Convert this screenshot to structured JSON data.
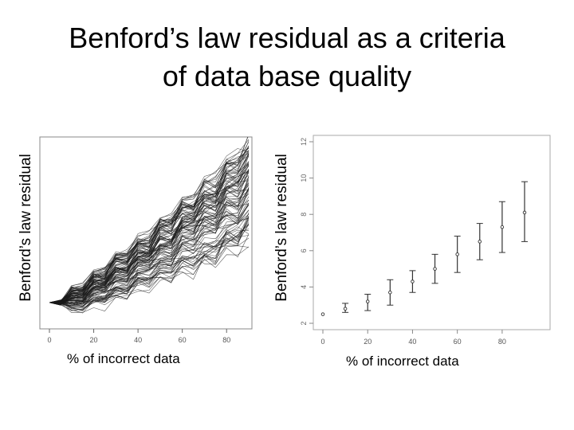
{
  "title": {
    "line1": "Benford’s law residual as a criteria",
    "line2": "of data base quality"
  },
  "chart_data": [
    {
      "type": "line",
      "xlabel": "% of incorrect data",
      "ylabel": "Benford’s law residual",
      "xticks": [
        "0",
        "20",
        "40",
        "60",
        "80"
      ],
      "xlim": [
        0,
        90
      ],
      "series_count": 100,
      "x": [
        0,
        10,
        20,
        30,
        40,
        50,
        60,
        70,
        80,
        90
      ],
      "mean": [
        2.5,
        2.9,
        3.3,
        3.7,
        4.3,
        5.0,
        5.8,
        6.5,
        7.3,
        8.1
      ],
      "spread_low": [
        2.5,
        2.0,
        2.3,
        2.6,
        3.2,
        3.6,
        4.2,
        4.6,
        5.2,
        5.8
      ],
      "spread_high": [
        2.5,
        3.4,
        4.3,
        5.3,
        6.3,
        7.4,
        8.6,
        9.6,
        10.8,
        12.0
      ]
    },
    {
      "type": "errorbar",
      "xlabel": "% of incorrect data",
      "ylabel": "Benford’s law residual",
      "xticks": [
        "0",
        "20",
        "40",
        "60",
        "80"
      ],
      "yticks": [
        "2",
        "4",
        "6",
        "8",
        "10",
        "12"
      ],
      "xlim": [
        0,
        90
      ],
      "ylim": [
        2,
        12
      ],
      "x": [
        0,
        10,
        20,
        30,
        40,
        50,
        60,
        70,
        80,
        90
      ],
      "mean": [
        2.5,
        2.8,
        3.2,
        3.7,
        4.3,
        5.0,
        5.8,
        6.5,
        7.3,
        8.1
      ],
      "lower": [
        2.5,
        2.6,
        2.7,
        3.0,
        3.7,
        4.2,
        4.8,
        5.5,
        5.9,
        6.5
      ],
      "upper": [
        2.5,
        3.1,
        3.6,
        4.4,
        4.9,
        5.8,
        6.8,
        7.5,
        8.7,
        9.8
      ]
    }
  ]
}
